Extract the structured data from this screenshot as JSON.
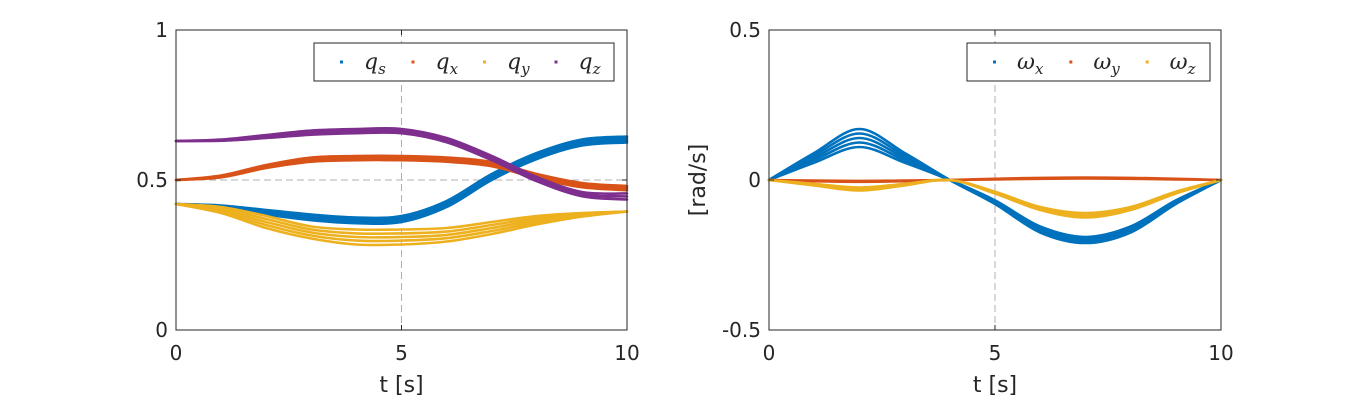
{
  "chart_data": [
    {
      "type": "line",
      "xlabel": "t [s]",
      "ylabel": "",
      "xlim": [
        0,
        10
      ],
      "ylim": [
        0,
        1
      ],
      "xticks": [
        "0",
        "5",
        "10"
      ],
      "yticks": [
        "0",
        "0.5",
        "1"
      ],
      "grid": "dashed at x=5, y=0.5",
      "legend_position": "top-right",
      "x": [
        0,
        1,
        2,
        3,
        4,
        5,
        6,
        7,
        8,
        9,
        10
      ],
      "series": [
        {
          "name": "q_s",
          "legend_base": "q",
          "legend_sub": "s",
          "color": "#0072BD",
          "bundle": [
            [
              0.42,
              0.415,
              0.4,
              0.385,
              0.375,
              0.38,
              0.43,
              0.52,
              0.59,
              0.635,
              0.645
            ],
            [
              0.42,
              0.413,
              0.395,
              0.378,
              0.368,
              0.373,
              0.423,
              0.513,
              0.583,
              0.628,
              0.638
            ],
            [
              0.42,
              0.411,
              0.39,
              0.372,
              0.362,
              0.366,
              0.416,
              0.506,
              0.576,
              0.621,
              0.631
            ],
            [
              0.42,
              0.409,
              0.385,
              0.366,
              0.356,
              0.36,
              0.41,
              0.5,
              0.57,
              0.615,
              0.625
            ]
          ]
        },
        {
          "name": "q_x",
          "legend_base": "q",
          "legend_sub": "x",
          "color": "#D95319",
          "bundle": [
            [
              0.5,
              0.515,
              0.55,
              0.575,
              0.58,
              0.58,
              0.575,
              0.56,
              0.52,
              0.49,
              0.48
            ],
            [
              0.5,
              0.512,
              0.545,
              0.568,
              0.573,
              0.573,
              0.568,
              0.553,
              0.513,
              0.483,
              0.473
            ],
            [
              0.5,
              0.509,
              0.54,
              0.561,
              0.566,
              0.566,
              0.561,
              0.546,
              0.506,
              0.476,
              0.466
            ]
          ]
        },
        {
          "name": "q_y",
          "legend_base": "q",
          "legend_sub": "y",
          "color": "#EDB120",
          "bundle": [
            [
              0.42,
              0.41,
              0.38,
              0.345,
              0.335,
              0.335,
              0.34,
              0.36,
              0.38,
              0.39,
              0.395
            ],
            [
              0.42,
              0.405,
              0.37,
              0.335,
              0.322,
              0.322,
              0.328,
              0.35,
              0.373,
              0.387,
              0.395
            ],
            [
              0.42,
              0.4,
              0.36,
              0.325,
              0.31,
              0.31,
              0.317,
              0.34,
              0.366,
              0.384,
              0.395
            ],
            [
              0.42,
              0.395,
              0.35,
              0.315,
              0.298,
              0.298,
              0.306,
              0.33,
              0.359,
              0.381,
              0.395
            ],
            [
              0.42,
              0.39,
              0.34,
              0.305,
              0.285,
              0.285,
              0.295,
              0.32,
              0.352,
              0.378,
              0.395
            ]
          ]
        },
        {
          "name": "q_z",
          "legend_base": "q",
          "legend_sub": "z",
          "color": "#7E2F8E",
          "bundle": [
            [
              0.63,
              0.635,
              0.65,
              0.665,
              0.67,
              0.67,
              0.64,
              0.58,
              0.51,
              0.46,
              0.455
            ],
            [
              0.63,
              0.633,
              0.645,
              0.658,
              0.663,
              0.663,
              0.633,
              0.573,
              0.503,
              0.453,
              0.445
            ],
            [
              0.63,
              0.631,
              0.64,
              0.651,
              0.656,
              0.656,
              0.626,
              0.566,
              0.496,
              0.446,
              0.435
            ]
          ]
        }
      ]
    },
    {
      "type": "line",
      "xlabel": "t [s]",
      "ylabel": "[rad/s]",
      "xlim": [
        0,
        10
      ],
      "ylim": [
        -0.5,
        0.5
      ],
      "xticks": [
        "0",
        "5",
        "10"
      ],
      "yticks": [
        "-0.5",
        "0",
        "0.5"
      ],
      "grid": "dashed at x=5",
      "legend_position": "top-right",
      "x": [
        0,
        1,
        2,
        3,
        4,
        5,
        6,
        7,
        8,
        9,
        10
      ],
      "series": [
        {
          "name": "ω_x",
          "legend_base": "ω",
          "legend_sub": "x",
          "color": "#0072BD",
          "bundle": [
            [
              0,
              0.09,
              0.17,
              0.09,
              0,
              -0.08,
              -0.175,
              -0.21,
              -0.175,
              -0.08,
              0
            ],
            [
              0,
              0.082,
              0.155,
              0.082,
              0,
              -0.077,
              -0.17,
              -0.205,
              -0.17,
              -0.077,
              0
            ],
            [
              0,
              0.074,
              0.14,
              0.074,
              0,
              -0.074,
              -0.165,
              -0.2,
              -0.165,
              -0.074,
              0
            ],
            [
              0,
              0.066,
              0.125,
              0.066,
              0,
              -0.071,
              -0.16,
              -0.195,
              -0.16,
              -0.071,
              0
            ],
            [
              0,
              0.058,
              0.11,
              0.058,
              0,
              -0.068,
              -0.155,
              -0.19,
              -0.155,
              -0.068,
              0
            ]
          ]
        },
        {
          "name": "ω_y",
          "legend_base": "ω",
          "legend_sub": "y",
          "color": "#D95319",
          "bundle": [
            [
              0,
              -0.004,
              -0.006,
              -0.004,
              0,
              0.004,
              0.007,
              0.008,
              0.007,
              0.004,
              0
            ],
            [
              0,
              -0.002,
              -0.003,
              -0.002,
              0,
              0.002,
              0.004,
              0.005,
              0.004,
              0.002,
              0
            ]
          ]
        },
        {
          "name": "ω_z",
          "legend_base": "ω",
          "legend_sub": "z",
          "color": "#EDB120",
          "bundle": [
            [
              0,
              -0.018,
              -0.035,
              -0.018,
              0,
              -0.045,
              -0.1,
              -0.125,
              -0.1,
              -0.045,
              0
            ],
            [
              0,
              -0.016,
              -0.03,
              -0.016,
              0,
              -0.042,
              -0.095,
              -0.118,
              -0.095,
              -0.042,
              0
            ],
            [
              0,
              -0.013,
              -0.025,
              -0.013,
              0,
              -0.039,
              -0.09,
              -0.11,
              -0.09,
              -0.039,
              0
            ]
          ]
        }
      ]
    }
  ]
}
